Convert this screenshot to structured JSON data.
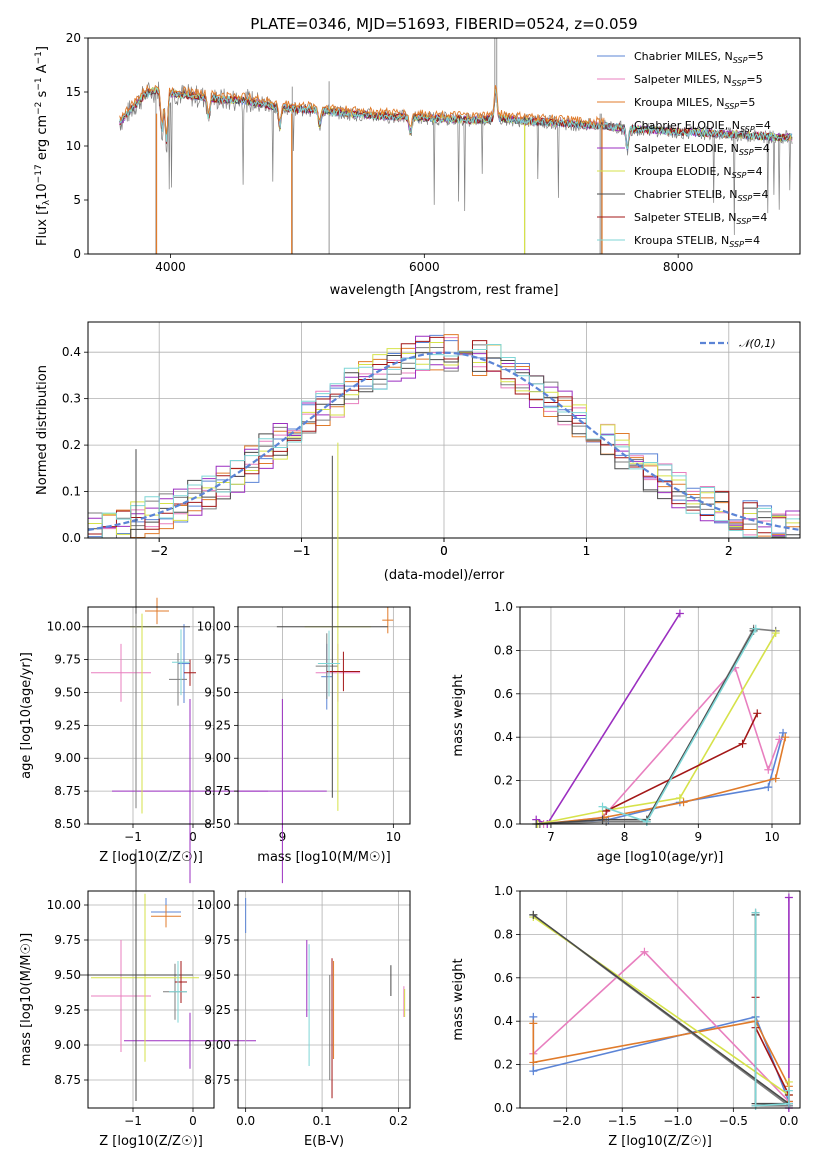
{
  "colors": [
    "#5b84d6",
    "#e87fbf",
    "#e07b2b",
    "#7e7e7e",
    "#9b2fc0",
    "#d6e24a",
    "#4a4a4a",
    "#a31717",
    "#7fd6d6"
  ],
  "chart_data": [
    {
      "type": "line",
      "title": "PLATE=0346, MJD=51693, FIBERID=0524, z=0.059",
      "xlabel": "wavelength [Angstrom, rest frame]",
      "ylabel": "Flux [fλ10⁻¹⁷ erg cm⁻² s⁻¹ A⁻¹]",
      "xlim": [
        3350,
        8960
      ],
      "ylim": [
        0,
        20
      ],
      "xticks": [
        4000,
        6000,
        8000
      ],
      "yticks": [
        0,
        5,
        10,
        15,
        20
      ],
      "legend": [
        "Chabrier MILES, N_SSP=5",
        "Salpeter MILES, N_SSP=5",
        "Kroupa MILES, N_SSP=5",
        "Chabrier ELODIE, N_SSP=4",
        "Salpeter ELODIE, N_SSP=4",
        "Kroupa ELODIE, N_SSP=4",
        "Chabrier STELIB, N_SSP=4",
        "Salpeter STELIB, N_SSP=4",
        "Kroupa STELIB, N_SSP=4"
      ],
      "continuum": {
        "x": [
          3600,
          3700,
          3800,
          3900,
          4000,
          4200,
          4400,
          4600,
          4800,
          5000,
          5200,
          5400,
          5600,
          5800,
          6000,
          6200,
          6400,
          6600,
          6800,
          7000,
          7200,
          7400,
          7600,
          7800,
          8000,
          8400,
          8800
        ],
        "y": [
          12.2,
          13.5,
          14.8,
          15.2,
          14.9,
          14.6,
          14.3,
          14.2,
          13.7,
          13.4,
          13.3,
          13.0,
          12.8,
          12.7,
          12.6,
          12.5,
          12.4,
          12.6,
          12.3,
          12.2,
          12.0,
          11.9,
          11.6,
          11.5,
          11.3,
          11.1,
          10.8
        ]
      }
    },
    {
      "type": "bar",
      "xlabel": "(data-model)/error",
      "ylabel": "Normed distribution",
      "xlim": [
        -2.5,
        2.5
      ],
      "ylim": [
        0,
        0.465
      ],
      "xticks": [
        -2,
        -1,
        0,
        1,
        2
      ],
      "yticks": [
        0.0,
        0.1,
        0.2,
        0.3,
        0.4
      ],
      "legend": [
        "𝒩(0,1)"
      ]
    },
    {
      "type": "scatter",
      "xlabel": "Z [log10(Z/Z☉)]",
      "ylabel": "age  [log10(age/yr)]",
      "xlim": [
        -1.75,
        0.35
      ],
      "ylim": [
        8.5,
        10.15
      ],
      "xticks": [
        -1,
        0
      ],
      "yticks": [
        8.5,
        8.75,
        9.0,
        9.25,
        9.5,
        9.75,
        10.0
      ]
    },
    {
      "type": "scatter",
      "xlabel": "mass [log10(M/M☉)]",
      "ylabel": "",
      "xlim": [
        8.6,
        10.15
      ],
      "ylim": [
        8.5,
        10.15
      ],
      "xticks": [
        9,
        10
      ],
      "yticks": [
        8.5,
        8.75,
        9.0,
        9.25,
        9.5,
        9.75,
        10.0
      ]
    },
    {
      "type": "line",
      "xlabel": "age  [log10(age/yr)]",
      "ylabel": "mass weight",
      "xlim": [
        6.58,
        10.38
      ],
      "ylim": [
        0,
        1.0
      ],
      "xticks": [
        7,
        8,
        9,
        10
      ],
      "yticks": [
        0.0,
        0.2,
        0.4,
        0.6,
        0.8,
        1.0
      ],
      "series": [
        {
          "x": [
            6.85,
            7.78,
            8.75,
            9.95,
            10.15
          ],
          "y": [
            0,
            0.02,
            0.1,
            0.17,
            0.42
          ]
        },
        {
          "x": [
            6.9,
            7.7,
            9.5,
            9.95,
            10.1
          ],
          "y": [
            0,
            0.03,
            0.72,
            0.25,
            0.39
          ]
        },
        {
          "x": [
            6.85,
            7.72,
            8.8,
            10.05,
            10.18
          ],
          "y": [
            0,
            0.03,
            0.1,
            0.21,
            0.4
          ]
        },
        {
          "x": [
            6.85,
            7.75,
            8.3,
            9.75,
            10.05
          ],
          "y": [
            0,
            0.01,
            0.01,
            0.9,
            0.89
          ]
        },
        {
          "x": [
            6.8,
            6.95,
            8.75
          ],
          "y": [
            0.02,
            0,
            0.97
          ]
        },
        {
          "x": [
            6.82,
            7.7,
            8.75,
            10.05
          ],
          "y": [
            0,
            0.06,
            0.12,
            0.88
          ]
        },
        {
          "x": [
            6.8,
            7.7,
            8.3,
            9.75
          ],
          "y": [
            0,
            0.02,
            0.02,
            0.89
          ]
        },
        {
          "x": [
            7.75,
            9.6,
            9.8
          ],
          "y": [
            0.06,
            0.37,
            0.51
          ]
        },
        {
          "x": [
            7.7,
            8.3,
            9.78
          ],
          "y": [
            0.08,
            0.01,
            0.9
          ]
        }
      ]
    },
    {
      "type": "scatter",
      "xlabel": "Z [log10(Z/Z☉)]",
      "ylabel": "mass [log10(M/M☉)]",
      "xlim": [
        -1.75,
        0.35
      ],
      "ylim": [
        8.55,
        10.1
      ],
      "xticks": [
        -1,
        0
      ],
      "yticks": [
        8.75,
        9.0,
        9.25,
        9.5,
        9.75,
        10.0
      ]
    },
    {
      "type": "scatter",
      "xlabel": "E(B-V)",
      "ylabel": "",
      "xlim": [
        -0.01,
        0.215
      ],
      "ylim": [
        8.55,
        10.1
      ],
      "xticks": [
        0.0,
        0.1,
        0.2
      ],
      "yticks": [
        8.75,
        9.0,
        9.25,
        9.5,
        9.75,
        10.0
      ],
      "bars": [
        {
          "x": 0.0,
          "y0": 9.8,
          "y1": 10.05
        },
        {
          "x": 0.08,
          "y0": 9.2,
          "y1": 9.75
        },
        {
          "x": 0.083,
          "y0": 8.85,
          "y1": 9.72
        },
        {
          "x": 0.11,
          "y0": 8.75,
          "y1": 9.5
        },
        {
          "x": 0.113,
          "y0": 8.62,
          "y1": 9.62
        },
        {
          "x": 0.115,
          "y0": 8.9,
          "y1": 9.6
        },
        {
          "x": 0.19,
          "y0": 9.35,
          "y1": 9.57
        },
        {
          "x": 0.207,
          "y0": 9.2,
          "y1": 9.42
        },
        {
          "x": 0.208,
          "y0": 9.2,
          "y1": 9.4
        }
      ]
    },
    {
      "type": "line",
      "xlabel": "Z [log10(Z/Z☉)]",
      "ylabel": "mass weight",
      "xlim": [
        -2.42,
        0.1
      ],
      "ylim": [
        0,
        1.0
      ],
      "xticks": [
        -2.0,
        -1.5,
        -1.0,
        -0.5,
        0.0
      ],
      "yticks": [
        0.0,
        0.2,
        0.4,
        0.6,
        0.8,
        1.0
      ],
      "series": [
        {
          "x": [
            -2.3,
            -2.3,
            -0.3,
            0.0,
            0.0
          ],
          "y": [
            0.42,
            0.17,
            0.42,
            0.03,
            0.01
          ]
        },
        {
          "x": [
            -2.3,
            -1.3,
            0.0,
            0.0
          ],
          "y": [
            0.25,
            0.72,
            0.03,
            0.0
          ]
        },
        {
          "x": [
            -2.3,
            -2.3,
            -0.3,
            0.0,
            0.0
          ],
          "y": [
            0.39,
            0.21,
            0.4,
            0.1,
            0.03
          ]
        },
        {
          "x": [
            -2.3,
            0.0,
            -0.3,
            -0.3
          ],
          "y": [
            0.89,
            0.01,
            0.01,
            0.9
          ]
        },
        {
          "x": [
            0.0,
            0.0
          ],
          "y": [
            0.97,
            0.0
          ]
        },
        {
          "x": [
            -2.3,
            0.0,
            0.0
          ],
          "y": [
            0.88,
            0.06,
            0.12
          ]
        },
        {
          "x": [
            -2.3,
            0.0,
            -0.3,
            -0.3
          ],
          "y": [
            0.89,
            0.02,
            0.02,
            0.89
          ]
        },
        {
          "x": [
            -0.3,
            -0.3,
            0.0
          ],
          "y": [
            0.51,
            0.37,
            0.06
          ]
        },
        {
          "x": [
            -0.3,
            -0.3,
            0.0,
            0.0
          ],
          "y": [
            0.9,
            0.01,
            0.02,
            0.08
          ]
        }
      ]
    }
  ]
}
